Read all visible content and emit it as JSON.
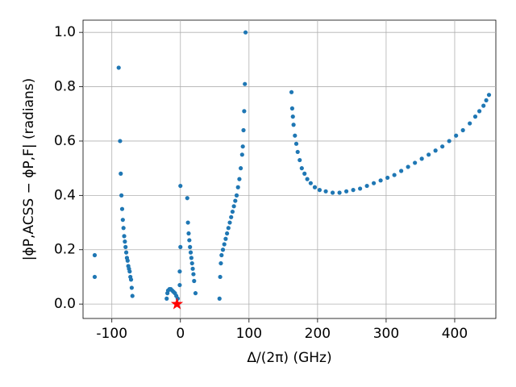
{
  "chart_data": {
    "type": "scatter",
    "x_label": "Δ/(2π) (GHz)",
    "y_label": "|ϕP,ACSS − ϕP,F| (radians)",
    "xlim": [
      -142,
      460
    ],
    "ylim": [
      -0.053,
      1.045
    ],
    "xticks": [
      -100,
      0,
      100,
      200,
      300,
      400
    ],
    "yticks": [
      {
        "value": 0,
        "label": "0.0"
      },
      0.2,
      0.4,
      0.6,
      0.8,
      {
        "value": 1,
        "label": "1.0"
      }
    ],
    "grid": true,
    "series": [
      {
        "color": "#1f77b4",
        "marker": "circle",
        "x": [
          -125,
          -125,
          -90,
          -88,
          -87,
          -86,
          -85,
          -84,
          -83,
          -82,
          -81,
          -80,
          -79,
          -78,
          -77,
          -76,
          -75,
          -74,
          -73,
          -72,
          -71,
          -70,
          -20,
          -19,
          -18,
          -16,
          -14,
          -12,
          -10,
          -8,
          -6,
          -4,
          0,
          0,
          -1,
          -1,
          10,
          11,
          12,
          13,
          14,
          15,
          16,
          17,
          18,
          19,
          20,
          22,
          57,
          58,
          59,
          60,
          62,
          64,
          66,
          68,
          70,
          72,
          74,
          76,
          78,
          80,
          82,
          84,
          86,
          88,
          90,
          91,
          92,
          93,
          94,
          95,
          162,
          163,
          164,
          165,
          167,
          169,
          171,
          174,
          177,
          181,
          185,
          190,
          196,
          203,
          212,
          222,
          232,
          242,
          252,
          262,
          272,
          282,
          292,
          302,
          312,
          322,
          332,
          342,
          352,
          362,
          372,
          382,
          392,
          402,
          412,
          422,
          430,
          436,
          442,
          446,
          450
        ],
        "values": [
          0.18,
          0.1,
          0.87,
          0.6,
          0.48,
          0.4,
          0.35,
          0.31,
          0.28,
          0.25,
          0.23,
          0.21,
          0.19,
          0.17,
          0.16,
          0.14,
          0.13,
          0.12,
          0.1,
          0.09,
          0.06,
          0.03,
          0.02,
          0.04,
          0.05,
          0.055,
          0.055,
          0.05,
          0.045,
          0.04,
          0.03,
          0.02,
          0.435,
          0.21,
          0.12,
          0.07,
          0.39,
          0.3,
          0.26,
          0.235,
          0.21,
          0.19,
          0.17,
          0.15,
          0.13,
          0.11,
          0.085,
          0.04,
          0.02,
          0.1,
          0.15,
          0.18,
          0.2,
          0.22,
          0.24,
          0.26,
          0.28,
          0.3,
          0.32,
          0.34,
          0.36,
          0.38,
          0.4,
          0.43,
          0.46,
          0.5,
          0.55,
          0.58,
          0.64,
          0.71,
          0.81,
          1.0,
          0.78,
          0.72,
          0.69,
          0.66,
          0.62,
          0.59,
          0.56,
          0.53,
          0.5,
          0.48,
          0.46,
          0.445,
          0.43,
          0.42,
          0.415,
          0.41,
          0.41,
          0.415,
          0.42,
          0.425,
          0.435,
          0.445,
          0.455,
          0.465,
          0.475,
          0.49,
          0.505,
          0.52,
          0.535,
          0.55,
          0.565,
          0.58,
          0.6,
          0.62,
          0.64,
          0.665,
          0.69,
          0.71,
          0.73,
          0.75,
          0.77
        ]
      },
      {
        "color": "#ff0000",
        "marker": "star",
        "x": [
          -5
        ],
        "values": [
          0
        ]
      }
    ]
  }
}
